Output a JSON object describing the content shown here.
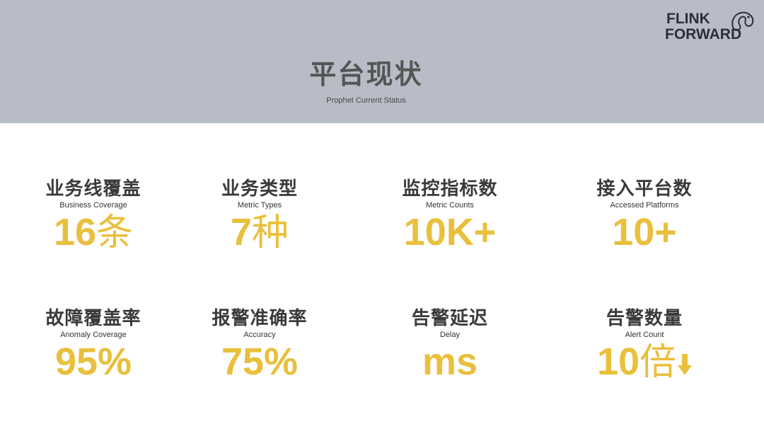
{
  "header": {
    "title": "平台现状",
    "subtitle": "Prophet Current Status"
  },
  "logo": {
    "line1": "FLINK",
    "line2": "FORWARD",
    "mascot_icon": "squirrel-icon"
  },
  "colors": {
    "header_bg": "#b8bcc6",
    "accent": "#e9bf3c",
    "label": "#3a3a3a"
  },
  "stats": [
    {
      "label": "业务线覆盖",
      "en": "Business Coverage",
      "value": "16",
      "unit": "条"
    },
    {
      "label": "业务类型",
      "en": "Metric Types",
      "value": "7",
      "unit": "种"
    },
    {
      "label": "监控指标数",
      "en": "Metric Counts",
      "value": "10K+",
      "unit": ""
    },
    {
      "label": "接入平台数",
      "en": "Accessed Platforms",
      "value": "10+",
      "unit": ""
    },
    {
      "label": "故障覆盖率",
      "en": "Anomaly Coverage",
      "value": "95%",
      "unit": ""
    },
    {
      "label": "报警准确率",
      "en": "Accuracy",
      "value": "75%",
      "unit": ""
    },
    {
      "label": "告警延迟",
      "en": "Delay",
      "value": "ms",
      "unit": ""
    },
    {
      "label": "告警数量",
      "en": "Alert Count",
      "value": "10",
      "unit": "倍",
      "icon": "arrow-down-icon"
    }
  ]
}
